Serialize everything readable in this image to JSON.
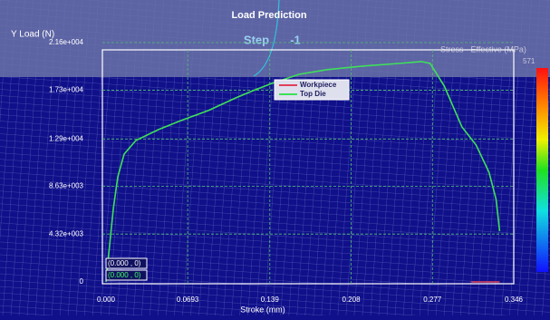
{
  "chart_data": {
    "type": "line",
    "title": "Load Prediction",
    "step_label": "Step",
    "step_value": "-1",
    "y_label": "Y Load (N)",
    "x_label": "Stroke (mm)",
    "colorbar_label": "Stress - Effective (MPa)",
    "colorbar_max": "571",
    "readouts": [
      "(0.000 , 0)",
      "(0.000 , 0)"
    ],
    "xlim": [
      0,
      0.346
    ],
    "ylim": [
      0,
      21600
    ],
    "xticks": [
      {
        "value": 0,
        "label": "0.000"
      },
      0.0693,
      0.139,
      0.208,
      0.277,
      0.346
    ],
    "yticks": [
      0,
      {
        "value": 4320,
        "label": "4.32e+003"
      },
      {
        "value": 8630,
        "label": "8.63e+003"
      },
      {
        "value": 12900,
        "label": "1.29e+004"
      },
      {
        "value": 17300,
        "label": "1.73e+004"
      },
      {
        "value": 21600,
        "label": "2.16e+004"
      }
    ],
    "grid": true,
    "series": [
      {
        "name": "Workpiece",
        "color": "#e0405a",
        "x": [
          0.31,
          0.334
        ],
        "values": [
          0,
          0
        ]
      },
      {
        "name": "Top Die",
        "color": "#3ee05a",
        "x": [
          0,
          0.0023,
          0.0062,
          0.01,
          0.0154,
          0.0254,
          0.0446,
          0.0638,
          0.0869,
          0.11,
          0.125,
          0.1407,
          0.1638,
          0.187,
          0.2176,
          0.2483,
          0.2676,
          0.275,
          0.287,
          0.302,
          0.314,
          0.325,
          0.331,
          0.334
        ],
        "values": [
          0,
          2540,
          6630,
          9490,
          11540,
          12770,
          13750,
          14570,
          15470,
          16610,
          17270,
          17920,
          18740,
          19150,
          19480,
          19720,
          19890,
          19720,
          17680,
          13990,
          12360,
          9900,
          7450,
          4580
        ]
      }
    ]
  }
}
